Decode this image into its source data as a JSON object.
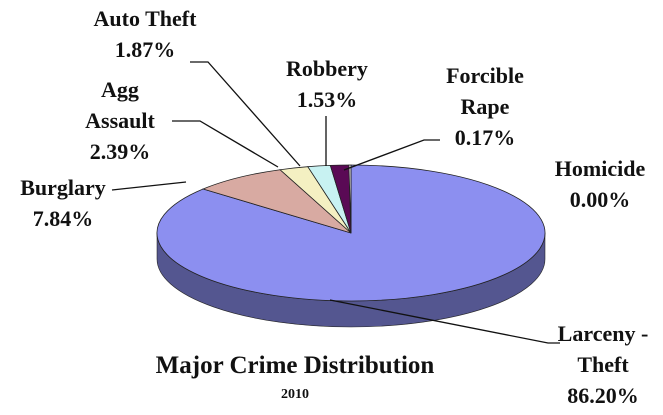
{
  "chart_data": {
    "type": "pie3d",
    "title": "Major Crime Distribution",
    "subtitle": "2010",
    "categories": [
      "Larceny - Theft",
      "Burglary",
      "Agg Assault",
      "Auto Theft",
      "Robbery",
      "Forcible Rape",
      "Homicide"
    ],
    "values": [
      86.2,
      7.84,
      2.39,
      1.87,
      1.53,
      0.17,
      0.0
    ],
    "value_labels": [
      "86.20%",
      "7.84%",
      "2.39%",
      "1.87%",
      "1.53%",
      "0.17%",
      "0.00%"
    ],
    "colors": [
      "#8c8ff0",
      "#d8aaa2",
      "#f4f0c2",
      "#c8f2f2",
      "#5a0a55",
      "#ffffff",
      "#993366"
    ]
  }
}
